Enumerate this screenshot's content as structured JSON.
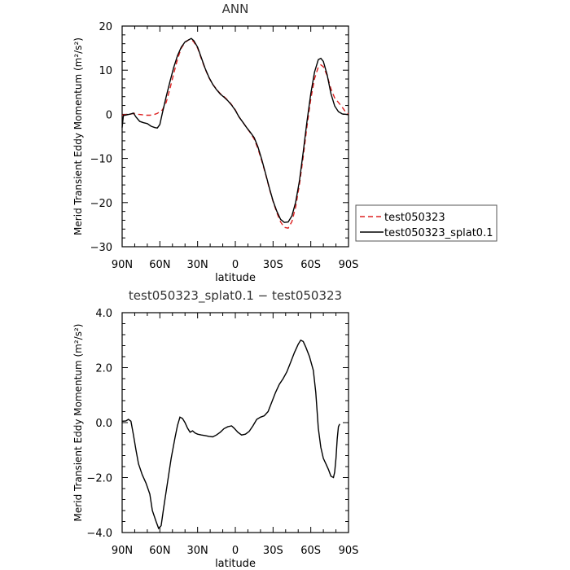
{
  "chart_data": [
    {
      "type": "line",
      "title": "ANN",
      "xlabel": "latitude",
      "ylabel": "Merid Transient Eddy Momentum (m²/s²)",
      "xlim": [
        90,
        -90
      ],
      "ylim": [
        -30,
        20
      ],
      "xticks": [
        90,
        60,
        30,
        0,
        -30,
        -60,
        -90
      ],
      "xtick_labels": [
        "90N",
        "60N",
        "30N",
        "0",
        "30S",
        "60S",
        "90S"
      ],
      "yticks": [
        20,
        10,
        0,
        -10,
        -20,
        -30
      ],
      "ytick_labels": [
        "20",
        "10",
        "0",
        "−10",
        "−20",
        "−30"
      ],
      "legend_position": "right",
      "series": [
        {
          "name": "test050323",
          "color": "#dd2222",
          "dash": "dashed",
          "points": [
            [
              90,
              -0.2
            ],
            [
              86,
              0.0
            ],
            [
              83,
              0.1
            ],
            [
              80,
              0.2
            ],
            [
              77,
              0.0
            ],
            [
              74,
              -0.1
            ],
            [
              71,
              -0.2
            ],
            [
              68,
              -0.2
            ],
            [
              65,
              -0.1
            ],
            [
              62,
              0.2
            ],
            [
              58,
              1.0
            ],
            [
              55,
              2.7
            ],
            [
              52,
              5.8
            ],
            [
              49,
              9.2
            ],
            [
              46,
              12.5
            ],
            [
              43,
              15.0
            ],
            [
              40,
              16.3
            ],
            [
              37,
              16.9
            ],
            [
              35,
              17.0
            ],
            [
              33,
              16.4
            ],
            [
              30,
              15.0
            ],
            [
              27,
              12.6
            ],
            [
              24,
              10.3
            ],
            [
              21,
              8.3
            ],
            [
              18,
              6.8
            ],
            [
              15,
              5.7
            ],
            [
              12,
              4.7
            ],
            [
              9,
              4.0
            ],
            [
              6,
              3.2
            ],
            [
              3,
              2.2
            ],
            [
              0,
              1.0
            ],
            [
              -3,
              -0.6
            ],
            [
              -6,
              -1.8
            ],
            [
              -9,
              -3.0
            ],
            [
              -12,
              -4.2
            ],
            [
              -15,
              -5.6
            ],
            [
              -18,
              -7.8
            ],
            [
              -21,
              -10.5
            ],
            [
              -24,
              -13.5
            ],
            [
              -27,
              -16.8
            ],
            [
              -30,
              -19.7
            ],
            [
              -33,
              -22.3
            ],
            [
              -36,
              -24.4
            ],
            [
              -39,
              -25.6
            ],
            [
              -42,
              -25.8
            ],
            [
              -45,
              -24.3
            ],
            [
              -48,
              -21.0
            ],
            [
              -51,
              -15.8
            ],
            [
              -54,
              -9.6
            ],
            [
              -57,
              -2.7
            ],
            [
              -60,
              3.5
            ],
            [
              -63,
              8.1
            ],
            [
              -66,
              10.7
            ],
            [
              -68,
              11.2
            ],
            [
              -70,
              10.8
            ],
            [
              -73,
              8.8
            ],
            [
              -76,
              5.8
            ],
            [
              -79,
              3.7
            ],
            [
              -82,
              2.7
            ],
            [
              -85,
              1.6
            ],
            [
              -88,
              0.4
            ],
            [
              -90,
              0.0
            ]
          ]
        },
        {
          "name": "test050323_splat0.1",
          "color": "#000000",
          "dash": "solid",
          "points": [
            [
              90,
              -3.0
            ],
            [
              89,
              -0.3
            ],
            [
              86,
              -0.1
            ],
            [
              83,
              0.1
            ],
            [
              81,
              0.3
            ],
            [
              79,
              -0.6
            ],
            [
              76,
              -1.6
            ],
            [
              73,
              -1.9
            ],
            [
              70,
              -2.1
            ],
            [
              67,
              -2.7
            ],
            [
              64,
              -3.0
            ],
            [
              62,
              -3.1
            ],
            [
              60,
              -2.3
            ],
            [
              58,
              0.3
            ],
            [
              55,
              4.0
            ],
            [
              52,
              7.4
            ],
            [
              49,
              10.6
            ],
            [
              46,
              13.3
            ],
            [
              43,
              15.2
            ],
            [
              40,
              16.4
            ],
            [
              37,
              16.9
            ],
            [
              35,
              17.2
            ],
            [
              33,
              16.7
            ],
            [
              30,
              15.2
            ],
            [
              27,
              12.8
            ],
            [
              24,
              10.4
            ],
            [
              21,
              8.4
            ],
            [
              18,
              6.8
            ],
            [
              15,
              5.6
            ],
            [
              12,
              4.6
            ],
            [
              9,
              3.9
            ],
            [
              6,
              3.1
            ],
            [
              3,
              2.1
            ],
            [
              0,
              0.9
            ],
            [
              -3,
              -0.6
            ],
            [
              -6,
              -1.8
            ],
            [
              -9,
              -3.0
            ],
            [
              -12,
              -4.1
            ],
            [
              -15,
              -5.3
            ],
            [
              -18,
              -7.4
            ],
            [
              -21,
              -10.2
            ],
            [
              -24,
              -13.4
            ],
            [
              -27,
              -16.6
            ],
            [
              -30,
              -19.6
            ],
            [
              -33,
              -22.0
            ],
            [
              -36,
              -23.8
            ],
            [
              -39,
              -24.5
            ],
            [
              -42,
              -24.4
            ],
            [
              -45,
              -23.0
            ],
            [
              -48,
              -19.9
            ],
            [
              -51,
              -15.0
            ],
            [
              -54,
              -8.5
            ],
            [
              -57,
              -1.6
            ],
            [
              -60,
              4.7
            ],
            [
              -63,
              9.6
            ],
            [
              -66,
              12.4
            ],
            [
              -68,
              12.7
            ],
            [
              -70,
              12.0
            ],
            [
              -73,
              9.0
            ],
            [
              -76,
              4.7
            ],
            [
              -79,
              1.9
            ],
            [
              -82,
              0.6
            ],
            [
              -85,
              0.1
            ],
            [
              -88,
              0.0
            ],
            [
              -90,
              -0.1
            ]
          ]
        }
      ]
    },
    {
      "type": "line",
      "title": "test050323_splat0.1 − test050323",
      "xlabel": "latitude",
      "ylabel": "Merid Transient Eddy Momentum (m²/s²)",
      "xlim": [
        90,
        -90
      ],
      "ylim": [
        -4,
        4
      ],
      "xticks": [
        90,
        60,
        30,
        0,
        -30,
        -60,
        -90
      ],
      "xtick_labels": [
        "90N",
        "60N",
        "30N",
        "0",
        "30S",
        "60S",
        "90S"
      ],
      "yticks": [
        4,
        2,
        0,
        -2,
        -4
      ],
      "ytick_labels": [
        "4.0",
        "2.0",
        "0.0",
        "−2.0",
        "−4.0"
      ],
      "series": [
        {
          "color": "#000000",
          "dash": "solid",
          "points": [
            [
              90,
              0.05
            ],
            [
              87,
              0.06
            ],
            [
              85,
              0.12
            ],
            [
              83,
              0.05
            ],
            [
              81,
              -0.45
            ],
            [
              79,
              -1.0
            ],
            [
              77,
              -1.5
            ],
            [
              74,
              -1.9
            ],
            [
              71,
              -2.2
            ],
            [
              68,
              -2.6
            ],
            [
              66,
              -3.2
            ],
            [
              63,
              -3.6
            ],
            [
              61,
              -3.85
            ],
            [
              59,
              -3.75
            ],
            [
              57,
              -3.1
            ],
            [
              54,
              -2.2
            ],
            [
              51,
              -1.3
            ],
            [
              48,
              -0.55
            ],
            [
              46,
              -0.1
            ],
            [
              44,
              0.2
            ],
            [
              42,
              0.15
            ],
            [
              40,
              0.0
            ],
            [
              38,
              -0.2
            ],
            [
              36,
              -0.35
            ],
            [
              34,
              -0.3
            ],
            [
              32,
              -0.38
            ],
            [
              30,
              -0.42
            ],
            [
              27,
              -0.45
            ],
            [
              24,
              -0.47
            ],
            [
              21,
              -0.5
            ],
            [
              18,
              -0.52
            ],
            [
              15,
              -0.45
            ],
            [
              12,
              -0.35
            ],
            [
              9,
              -0.22
            ],
            [
              6,
              -0.15
            ],
            [
              3,
              -0.12
            ],
            [
              1,
              -0.2
            ],
            [
              -2,
              -0.35
            ],
            [
              -5,
              -0.45
            ],
            [
              -8,
              -0.42
            ],
            [
              -11,
              -0.32
            ],
            [
              -14,
              -0.12
            ],
            [
              -17,
              0.12
            ],
            [
              -20,
              0.2
            ],
            [
              -23,
              0.25
            ],
            [
              -26,
              0.4
            ],
            [
              -29,
              0.75
            ],
            [
              -32,
              1.1
            ],
            [
              -35,
              1.4
            ],
            [
              -38,
              1.6
            ],
            [
              -41,
              1.85
            ],
            [
              -44,
              2.2
            ],
            [
              -47,
              2.55
            ],
            [
              -50,
              2.85
            ],
            [
              -52,
              3.0
            ],
            [
              -54,
              2.95
            ],
            [
              -56,
              2.75
            ],
            [
              -59,
              2.4
            ],
            [
              -62,
              1.9
            ],
            [
              -64,
              1.1
            ],
            [
              -66,
              -0.2
            ],
            [
              -68,
              -0.9
            ],
            [
              -70,
              -1.3
            ],
            [
              -72,
              -1.5
            ],
            [
              -74,
              -1.7
            ],
            [
              -76,
              -1.95
            ],
            [
              -78,
              -2.0
            ],
            [
              -79,
              -1.8
            ],
            [
              -80,
              -1.3
            ],
            [
              -81,
              -0.6
            ],
            [
              -82,
              -0.15
            ],
            [
              -83,
              -0.05
            ]
          ]
        }
      ]
    }
  ]
}
